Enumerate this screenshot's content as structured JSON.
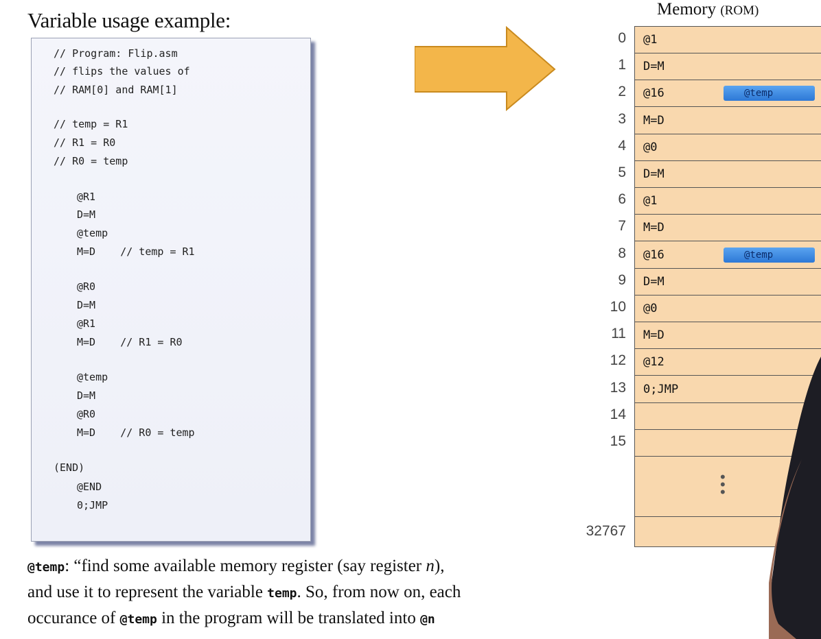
{
  "title": "Variable usage example:",
  "code_lines": [
    "// Program: Flip.asm",
    "// flips the values of",
    "// RAM[0] and RAM[1]",
    "// temp = R1",
    "// R1 = R0",
    "// R0 = temp",
    "@R1",
    "D=M",
    "@temp",
    "M=D    // temp = R1",
    "@R0",
    "D=M",
    "@R1",
    "M=D    // R1 = R0",
    "@temp",
    "D=M",
    "@R0",
    "M=D    // R0 = temp",
    "(END)",
    "@END",
    "0;JMP"
  ],
  "caption": {
    "code1": "@temp",
    "text1": ": “find some available memory register (say register ",
    "var_n": "n",
    "text2": "),",
    "text3": "and use it to represent the variable ",
    "code2": "temp",
    "text4": ". So, from now on, each",
    "text5": "occurance of ",
    "code3": "@temp",
    "text6": " in the program will be translated into ",
    "code4": "@n"
  },
  "memory": {
    "title": "Memory ",
    "title_small": "(ROM)",
    "rows": [
      {
        "addr": "0",
        "value": "@1"
      },
      {
        "addr": "1",
        "value": "D=M"
      },
      {
        "addr": "2",
        "value": "@16",
        "tag": "@temp"
      },
      {
        "addr": "3",
        "value": "M=D"
      },
      {
        "addr": "4",
        "value": "@0"
      },
      {
        "addr": "5",
        "value": "D=M"
      },
      {
        "addr": "6",
        "value": "@1"
      },
      {
        "addr": "7",
        "value": "M=D"
      },
      {
        "addr": "8",
        "value": "@16",
        "tag": "@temp"
      },
      {
        "addr": "9",
        "value": "D=M"
      },
      {
        "addr": "10",
        "value": "@0"
      },
      {
        "addr": "11",
        "value": "M=D"
      },
      {
        "addr": "12",
        "value": "@12"
      },
      {
        "addr": "13",
        "value": "0;JMP"
      },
      {
        "addr": "14",
        "value": ""
      },
      {
        "addr": "15",
        "value": ""
      }
    ],
    "last_addr": "32767",
    "ellipsis": "⋮"
  },
  "colors": {
    "rom_bg": "#f9d8ae",
    "arrow": "#f3b64a",
    "tag": "#3a86e0"
  }
}
